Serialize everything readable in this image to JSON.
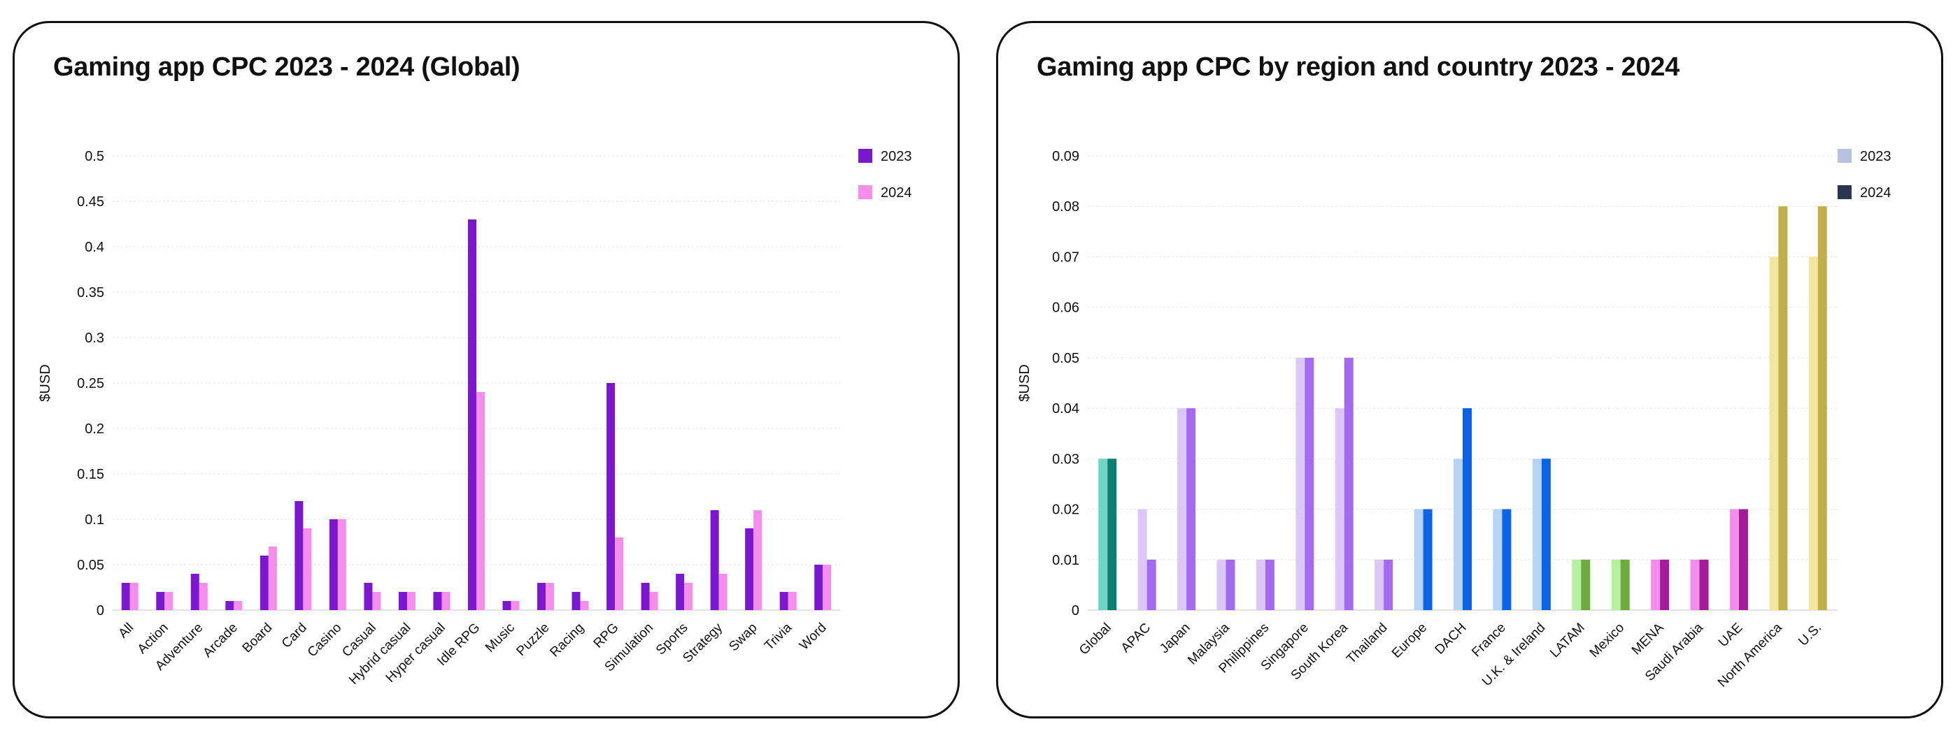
{
  "chart_data": [
    {
      "type": "bar",
      "title": "Gaming app CPC 2023 - 2024 (Global)",
      "ylabel": "$USD",
      "xlabel": "",
      "ylim": [
        0,
        0.5
      ],
      "yticks": [
        "0",
        "0.05",
        "0.1",
        "0.15",
        "0.2",
        "0.25",
        "0.3",
        "0.35",
        "0.4",
        "0.45",
        "0.5"
      ],
      "grid": true,
      "legend_position": "top-right",
      "categories": [
        "All",
        "Action",
        "Adventure",
        "Arcade",
        "Board",
        "Card",
        "Casino",
        "Casual",
        "Hybrid casual",
        "Hyper casual",
        "Idle RPG",
        "Music",
        "Puzzle",
        "Racing",
        "RPG",
        "Simulation",
        "Sports",
        "Strategy",
        "Swap",
        "Trivia",
        "Word"
      ],
      "series": [
        {
          "name": "2023",
          "color": "#7a17cf",
          "values": [
            0.03,
            0.02,
            0.04,
            0.01,
            0.06,
            0.12,
            0.1,
            0.03,
            0.02,
            0.02,
            0.43,
            0.01,
            0.03,
            0.02,
            0.25,
            0.03,
            0.04,
            0.11,
            0.09,
            0.02,
            0.05
          ]
        },
        {
          "name": "2024",
          "color": "#f58ded",
          "values": [
            0.03,
            0.02,
            0.03,
            0.01,
            0.07,
            0.09,
            0.1,
            0.02,
            0.02,
            0.02,
            0.24,
            0.01,
            0.03,
            0.01,
            0.08,
            0.02,
            0.03,
            0.04,
            0.11,
            0.02,
            0.05
          ]
        }
      ]
    },
    {
      "type": "bar",
      "title": "Gaming app CPC by region and country 2023 - 2024",
      "ylabel": "$USD",
      "xlabel": "",
      "ylim": [
        0,
        0.09
      ],
      "yticks": [
        "0",
        "0.01",
        "0.02",
        "0.03",
        "0.04",
        "0.05",
        "0.06",
        "0.07",
        "0.08",
        "0.09"
      ],
      "grid": true,
      "legend_position": "top-right",
      "legend_colors": {
        "2023": "#b5c3e0",
        "2024": "#2a3552"
      },
      "categories": [
        "Global",
        "APAC",
        "Japan",
        "Malaysia",
        "Philippines",
        "Singapore",
        "South Korea",
        "Thailand",
        "Europe",
        "DACH",
        "France",
        "U.K. & Ireland",
        "LATAM",
        "Mexico",
        "MENA",
        "Saudi Arabia",
        "UAE",
        "North America",
        "U.S."
      ],
      "category_colors_2023": [
        "#6fd6c4",
        "#dcc8f7",
        "#dcc8f7",
        "#dcc8f7",
        "#dcc8f7",
        "#dcc8f7",
        "#dcc8f7",
        "#dcc8f7",
        "#b8d4f5",
        "#b8d4f5",
        "#b8d4f5",
        "#b8d4f5",
        "#b6efa0",
        "#b6efa0",
        "#f58ded",
        "#f58ded",
        "#f58ded",
        "#f2e6a0",
        "#f2e6a0"
      ],
      "category_colors_2024": [
        "#0e7d72",
        "#a46af0",
        "#a46af0",
        "#a46af0",
        "#a46af0",
        "#a46af0",
        "#a46af0",
        "#a46af0",
        "#0d63e8",
        "#0d63e8",
        "#0d63e8",
        "#0d63e8",
        "#6cab3d",
        "#6cab3d",
        "#a51c9b",
        "#a51c9b",
        "#a51c9b",
        "#bfae4a",
        "#bfae4a"
      ],
      "series": [
        {
          "name": "2023",
          "values": [
            0.03,
            0.02,
            0.04,
            0.01,
            0.01,
            0.05,
            0.04,
            0.01,
            0.02,
            0.03,
            0.02,
            0.03,
            0.01,
            0.01,
            0.01,
            0.01,
            0.02,
            0.07,
            0.07
          ]
        },
        {
          "name": "2024",
          "values": [
            0.03,
            0.01,
            0.04,
            0.01,
            0.01,
            0.05,
            0.05,
            0.01,
            0.02,
            0.04,
            0.02,
            0.03,
            0.01,
            0.01,
            0.01,
            0.01,
            0.02,
            0.08,
            0.08
          ]
        }
      ]
    }
  ]
}
